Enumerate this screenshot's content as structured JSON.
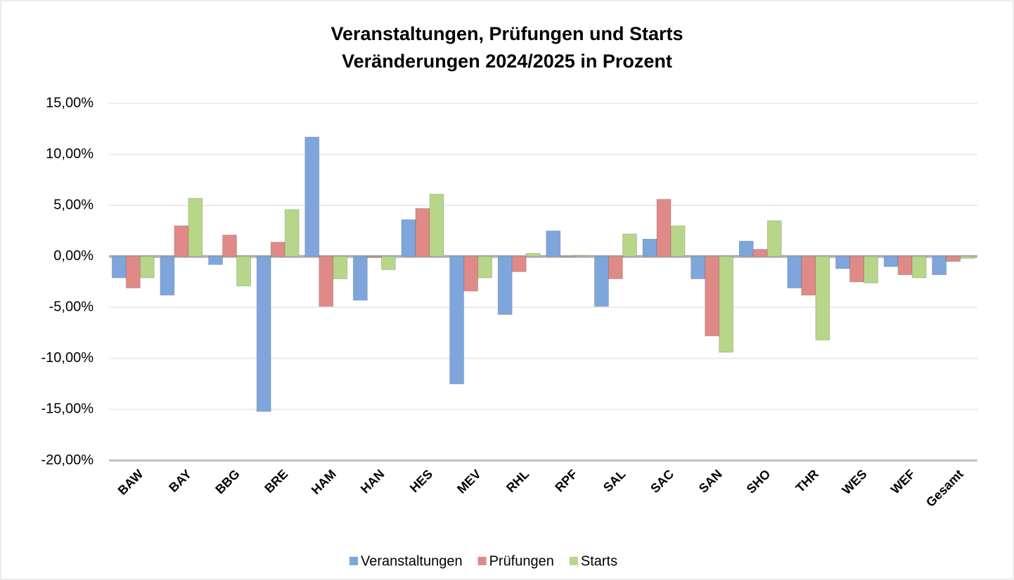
{
  "chart_data": {
    "type": "bar",
    "title": "Veranstaltungen, Prüfungen und Starts",
    "subtitle": "Veränderungen 2024/2025 in Prozent",
    "categories": [
      "BAW",
      "BAY",
      "BBG",
      "BRE",
      "HAM",
      "HAN",
      "HES",
      "MEV",
      "RHL",
      "RPF",
      "SAL",
      "SAC",
      "SAN",
      "SHO",
      "THR",
      "WES",
      "WEF",
      "Gesamt"
    ],
    "series": [
      {
        "name": "Veranstaltungen",
        "color": "#7ea6dc",
        "values": [
          -2.1,
          -3.8,
          -0.8,
          -15.2,
          11.7,
          -4.3,
          3.6,
          -12.5,
          -5.7,
          2.5,
          -4.9,
          1.7,
          -2.2,
          1.5,
          -3.1,
          -1.2,
          -1.0,
          -1.8
        ]
      },
      {
        "name": "Prüfungen",
        "color": "#e08a87",
        "values": [
          -3.1,
          3.0,
          2.1,
          1.4,
          -4.9,
          -0.1,
          4.7,
          -3.4,
          -1.5,
          0.0,
          -2.2,
          5.6,
          -7.8,
          0.7,
          -3.8,
          -2.5,
          -1.8,
          -0.5
        ]
      },
      {
        "name": "Starts",
        "color": "#b7d689",
        "values": [
          -2.1,
          5.7,
          -2.9,
          4.6,
          -2.2,
          -1.3,
          6.1,
          -2.1,
          0.3,
          0.1,
          2.2,
          3.0,
          -9.4,
          3.5,
          -8.2,
          -2.6,
          -2.1,
          -0.2
        ]
      }
    ],
    "ylim": [
      -20,
      15
    ],
    "yticks": [
      {
        "value": -20,
        "label": "-20,00%"
      },
      {
        "value": -15,
        "label": "-15,00%"
      },
      {
        "value": -10,
        "label": "-10,00%"
      },
      {
        "value": -5,
        "label": "-5,00%"
      },
      {
        "value": 0,
        "label": "0,00%"
      },
      {
        "value": 5,
        "label": "5,00%"
      },
      {
        "value": 10,
        "label": "10,00%"
      },
      {
        "value": 15,
        "label": "15,00%"
      }
    ],
    "grid": true,
    "legend": "bottom"
  }
}
